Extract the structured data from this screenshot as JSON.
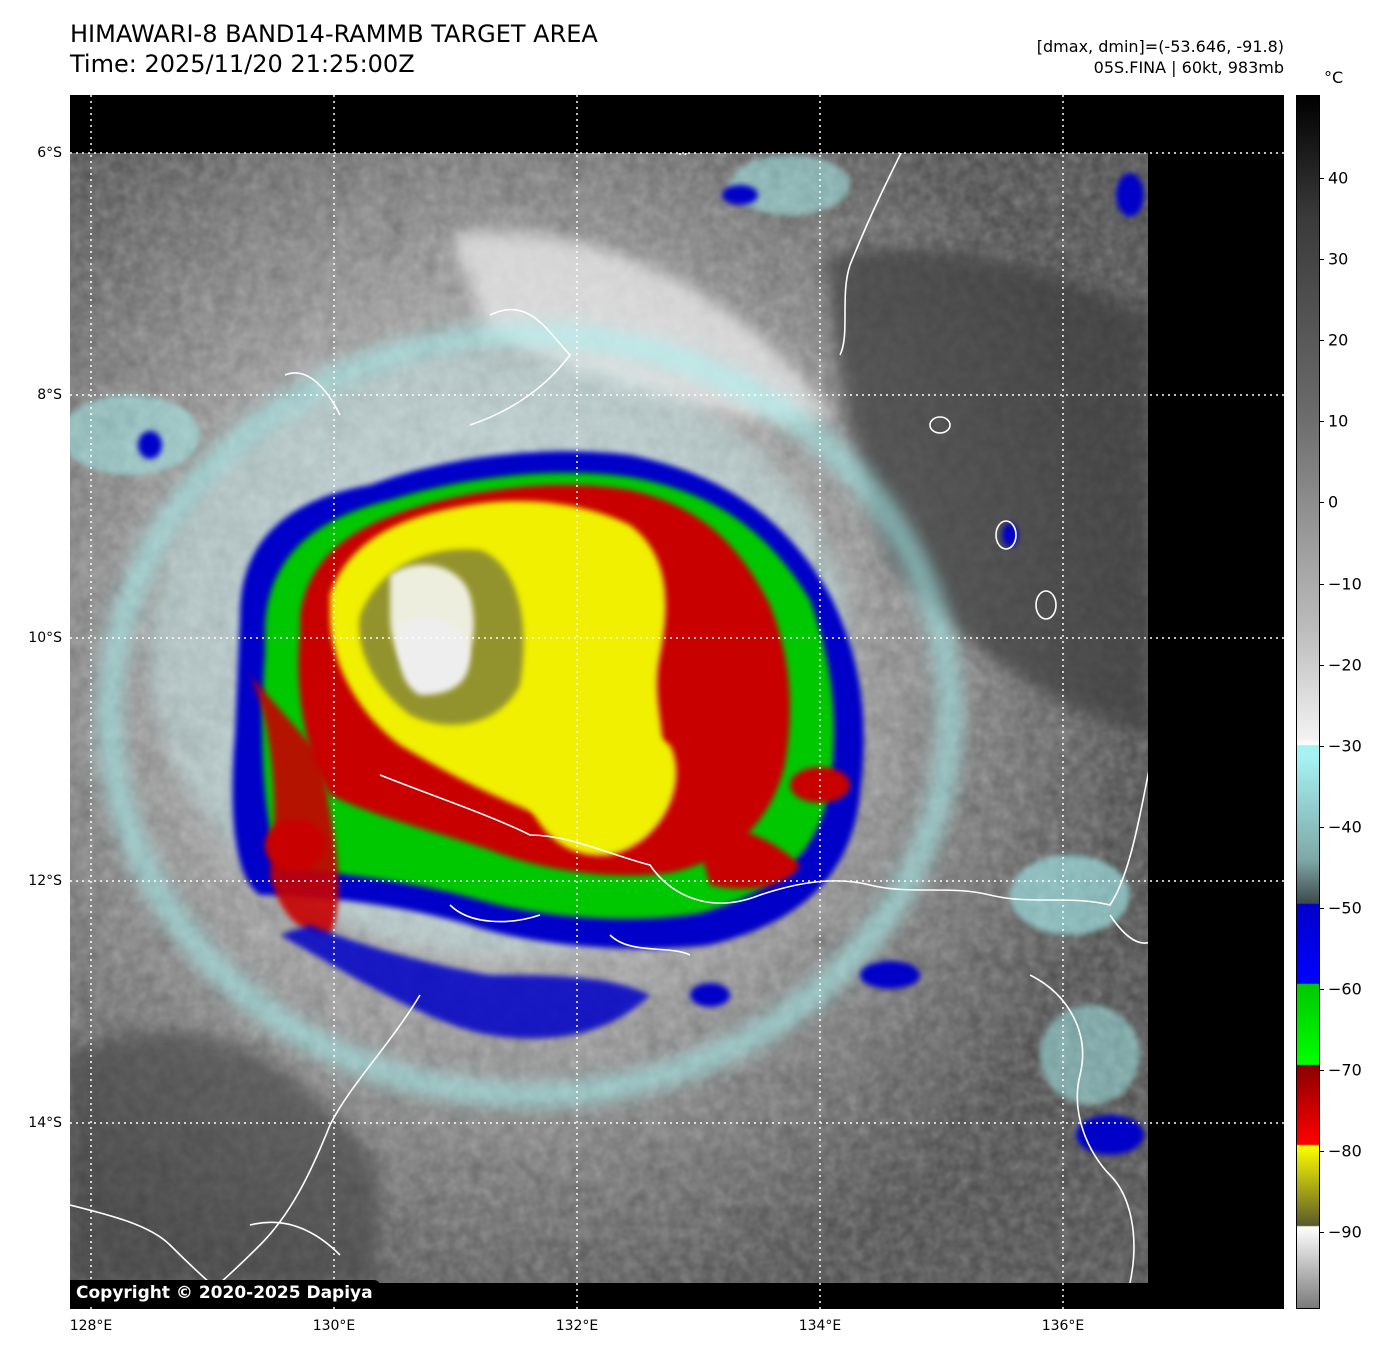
{
  "header": {
    "title": "HIMAWARI-8 BAND14-RAMMB TARGET AREA",
    "time": "Time: 2025/11/20 21:25:00Z",
    "dmax_dmin": "[dmax, dmin]=(-53.646, -91.8)",
    "storm": "05S.FINA | 60kt, 983mb"
  },
  "axes": {
    "lat_labels": [
      "6°S",
      "8°S",
      "10°S",
      "12°S",
      "14°S"
    ],
    "lon_labels": [
      "128°E",
      "130°E",
      "132°E",
      "134°E",
      "136°E"
    ]
  },
  "colorbar": {
    "unit": "°C",
    "ticks": [
      "40",
      "30",
      "20",
      "10",
      "0",
      "−10",
      "−20",
      "−30",
      "−40",
      "−50",
      "−60",
      "−70",
      "−80",
      "−90"
    ],
    "colors": {
      "warm_top": "#000000",
      "cyan": "#a6f2f2",
      "blue": "#0000c8",
      "green": "#00c800",
      "red": "#c80000",
      "yellow": "#f0f000",
      "olive": "#6a6a2a",
      "white": "#ffffff"
    }
  },
  "copyright": "Copyright © 2020-2025 Dapiya"
}
